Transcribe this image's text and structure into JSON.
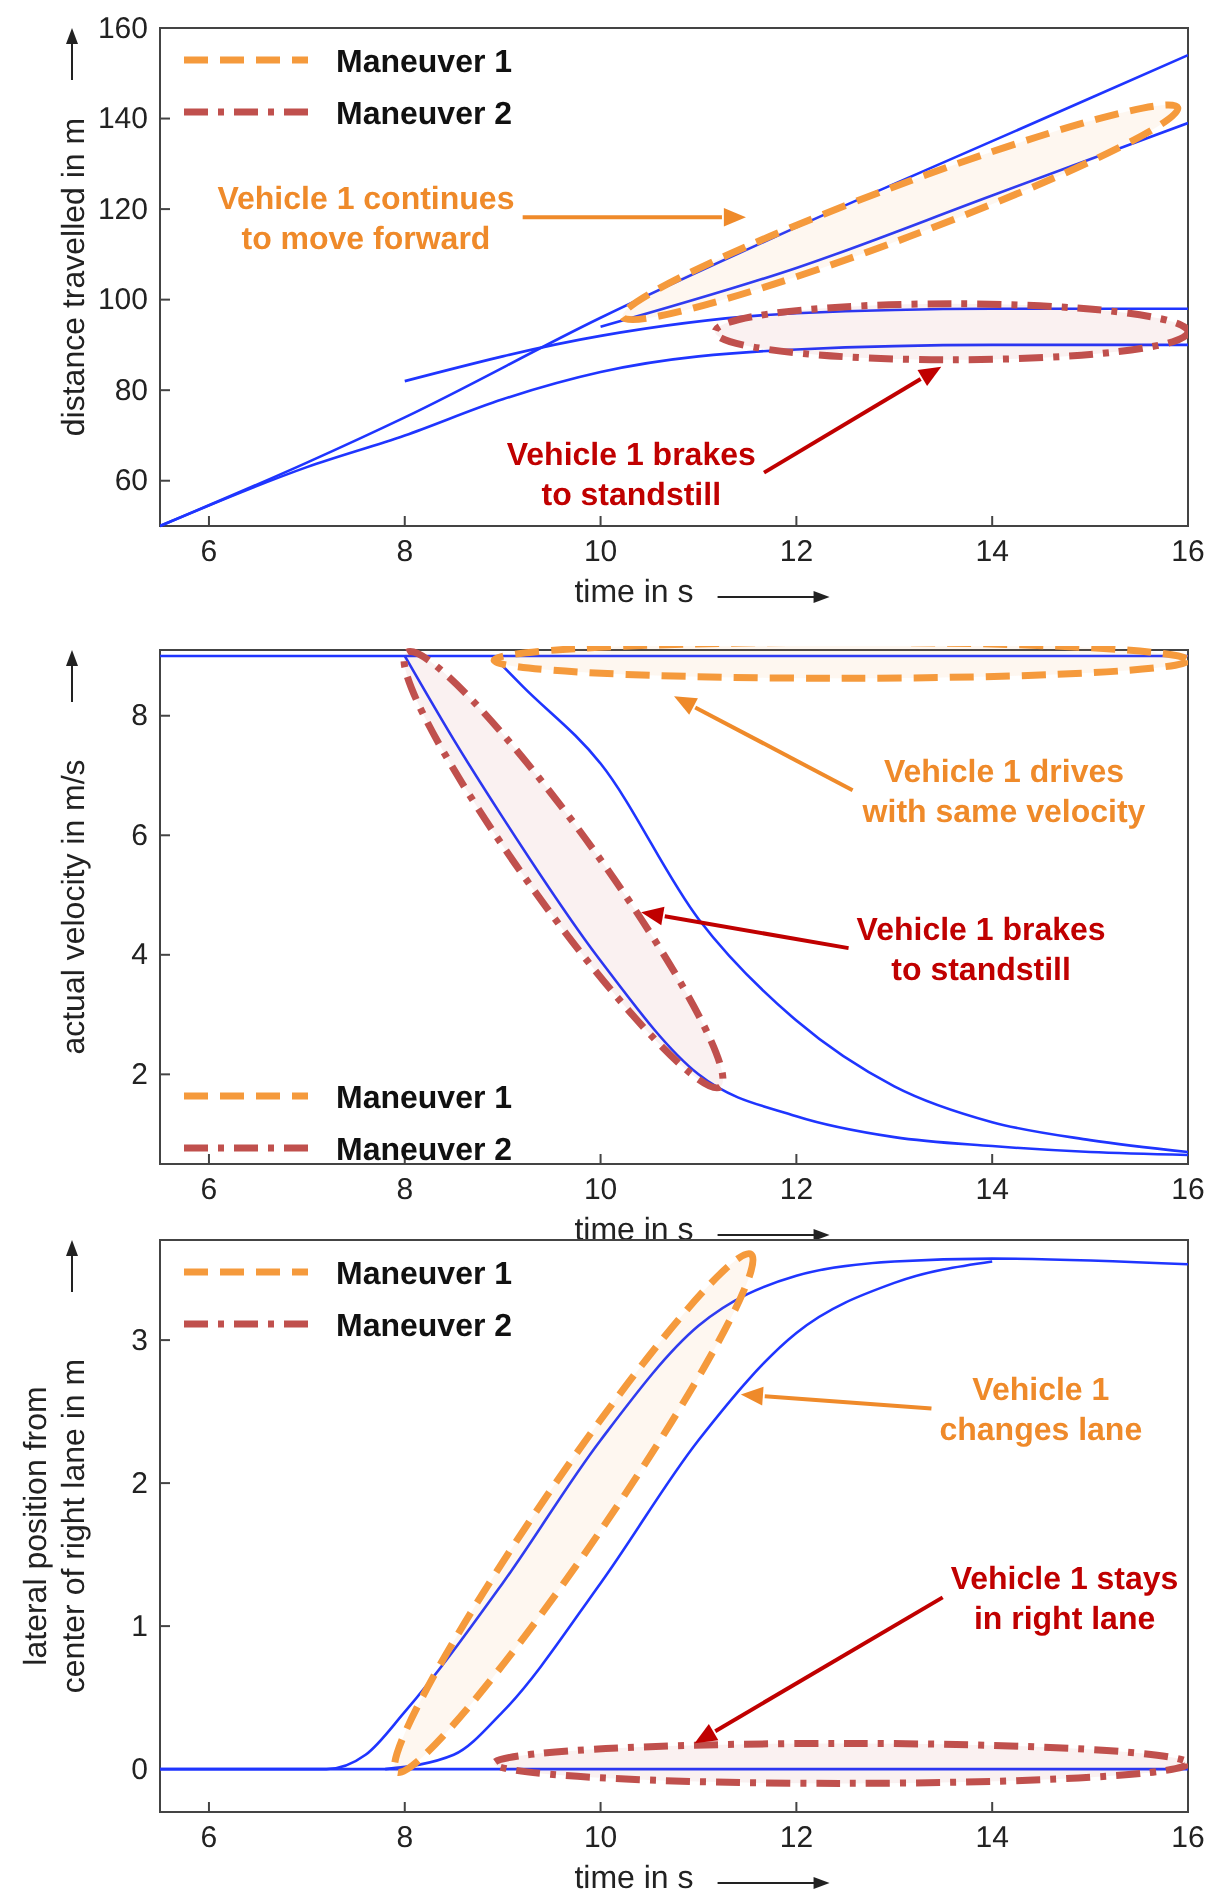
{
  "chart_data": [
    {
      "type": "line",
      "xlabel": "time in s",
      "ylabel": "distance travelled in m",
      "xlim": [
        5.5,
        16
      ],
      "xticks": [
        6,
        8,
        10,
        12,
        14,
        16
      ],
      "ylim": [
        50,
        160
      ],
      "yticks": [
        60,
        80,
        100,
        120,
        140,
        160
      ],
      "grid": false,
      "series": [
        {
          "color": "#1f35ff",
          "line_style": "solid",
          "x": [
            5.5,
            7,
            8,
            10,
            12,
            14,
            16
          ],
          "values": [
            50,
            64,
            74,
            96,
            116,
            135,
            154
          ]
        },
        {
          "color": "#1f35ff",
          "line_style": "solid",
          "x": [
            10,
            12,
            14,
            16
          ],
          "values": [
            94,
            107,
            123,
            139
          ]
        },
        {
          "color": "#1f35ff",
          "line_style": "solid",
          "x": [
            8,
            10,
            12,
            14,
            16
          ],
          "values": [
            82,
            92,
            97,
            98,
            98
          ]
        },
        {
          "color": "#1f35ff",
          "line_style": "solid",
          "x": [
            5.5,
            7,
            8,
            9,
            10,
            12,
            14,
            16
          ],
          "values": [
            50,
            63,
            70,
            78,
            84,
            89,
            90,
            90
          ]
        }
      ],
      "annotations": [
        "Maneuver 1",
        "Maneuver 2",
        "Vehicle 1 continues\nto move forward",
        "Vehicle  1  brakes\nto standstill"
      ]
    },
    {
      "type": "line",
      "xlabel": "time in s",
      "ylabel": "actual velocity in m/s",
      "xlim": [
        5.5,
        16
      ],
      "xticks": [
        6,
        8,
        10,
        12,
        14,
        16
      ],
      "ylim": [
        0.5,
        9.1
      ],
      "yticks": [
        2,
        4,
        6,
        8
      ],
      "grid": false,
      "series": [
        {
          "color": "#1f35ff",
          "line_style": "solid",
          "x": [
            5.5,
            16
          ],
          "values": [
            9,
            9
          ]
        },
        {
          "color": "#1f35ff",
          "line_style": "solid",
          "x": [
            8.9,
            9.2,
            10,
            11,
            12,
            13,
            14,
            15,
            16
          ],
          "values": [
            9,
            8.5,
            7.2,
            4.6,
            2.9,
            1.8,
            1.2,
            0.9,
            0.7
          ]
        },
        {
          "color": "#1f35ff",
          "line_style": "solid",
          "x": [
            8,
            8.5,
            9,
            10,
            11,
            12,
            13,
            14,
            15,
            16
          ],
          "values": [
            9,
            7.6,
            6.3,
            3.9,
            2,
            1.3,
            0.95,
            0.8,
            0.7,
            0.65
          ]
        }
      ],
      "annotations": [
        "Maneuver 1",
        "Maneuver 2",
        "Vehicle 1 drives\nwith same velocity",
        "Vehicle  1  brakes\nto standstill"
      ]
    },
    {
      "type": "line",
      "xlabel": "time in s",
      "ylabel": "lateral position from\ncenter of right lane in m",
      "xlim": [
        5.5,
        16
      ],
      "xticks": [
        6,
        8,
        10,
        12,
        14,
        16
      ],
      "ylim": [
        -0.3,
        3.7
      ],
      "yticks": [
        0,
        1,
        2,
        3
      ],
      "grid": false,
      "series": [
        {
          "color": "#1f35ff",
          "line_style": "solid",
          "x": [
            5.5,
            7.2,
            7.6,
            8,
            9,
            10,
            11,
            12,
            13,
            14,
            16
          ],
          "values": [
            0,
            0,
            0.1,
            0.4,
            1.3,
            2.3,
            3.1,
            3.45,
            3.55,
            3.57,
            3.53
          ]
        },
        {
          "color": "#1f35ff",
          "line_style": "solid",
          "x": [
            7.8,
            8.5,
            9,
            10,
            11,
            12,
            13,
            14
          ],
          "values": [
            0,
            0.1,
            0.4,
            1.3,
            2.3,
            3.05,
            3.4,
            3.55
          ]
        },
        {
          "color": "#1f35ff",
          "line_style": "solid",
          "x": [
            5.5,
            16
          ],
          "values": [
            0,
            0
          ]
        }
      ],
      "annotations": [
        "Maneuver 1",
        "Maneuver 2",
        "Vehicle 1\nchanges lane",
        "Vehicle 1 stays\nin right lane"
      ]
    }
  ]
}
